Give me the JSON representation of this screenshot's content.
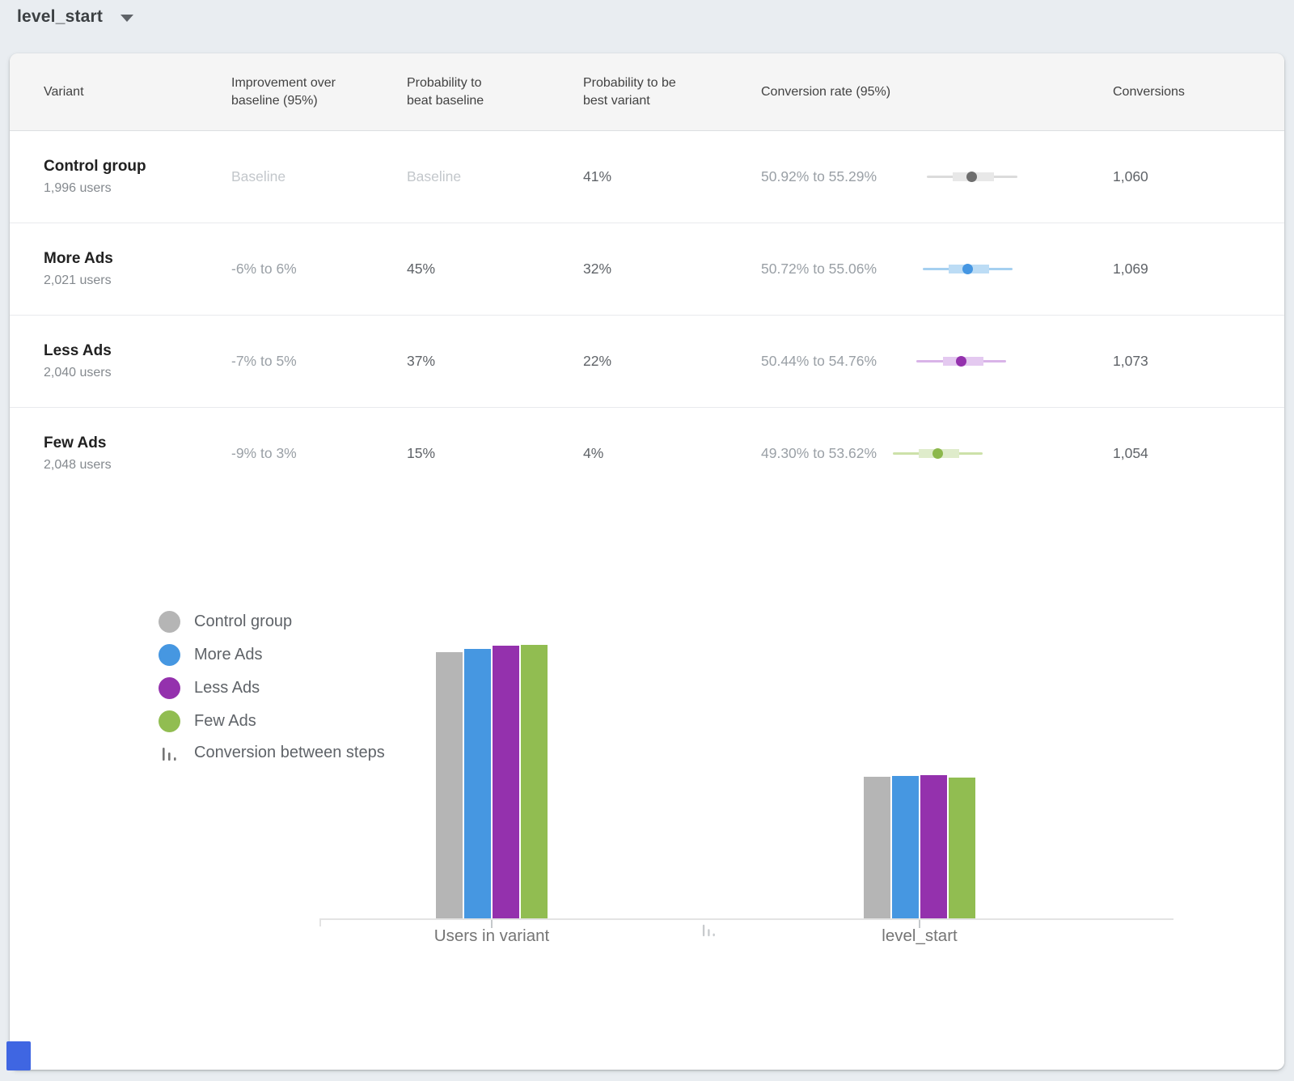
{
  "toolbar": {
    "metric_selector": {
      "label": "level_start"
    }
  },
  "table": {
    "columns": {
      "variant": "Variant",
      "improvement": "Improvement over baseline (95%)",
      "prob_beat": "Probability to beat baseline",
      "prob_best": "Probability to be best variant",
      "conv_rate": "Conversion rate (95%)",
      "conversions": "Conversions"
    },
    "rows": [
      {
        "variant": "Control group",
        "users": "1,996 users",
        "improvement": "Baseline",
        "prob_beat": "Baseline",
        "prob_best": "41%",
        "conv_rate": "50.92% to 55.29%",
        "ci_low": 50.92,
        "ci_high": 55.29,
        "conversions": "1,060",
        "colors": {
          "dot": "#6e6e6e",
          "line": "#dbdbdb",
          "box": "#e8e8e8"
        }
      },
      {
        "variant": "More Ads",
        "users": "2,021 users",
        "improvement": "-6% to 6%",
        "prob_beat": "45%",
        "prob_best": "32%",
        "conv_rate": "50.72% to 55.06%",
        "ci_low": 50.72,
        "ci_high": 55.06,
        "conversions": "1,069",
        "colors": {
          "dot": "#4596e2",
          "line": "#a5d0f0",
          "box": "#bcdcf5"
        }
      },
      {
        "variant": "Less Ads",
        "users": "2,040 users",
        "improvement": "-7% to 5%",
        "prob_beat": "37%",
        "prob_best": "22%",
        "conv_rate": "50.44% to 54.76%",
        "ci_low": 50.44,
        "ci_high": 54.76,
        "conversions": "1,073",
        "colors": {
          "dot": "#9431ad",
          "line": "#d9b4e8",
          "box": "#e4c9f0"
        }
      },
      {
        "variant": "Few Ads",
        "users": "2,048 users",
        "improvement": "-9% to 3%",
        "prob_beat": "15%",
        "prob_best": "4%",
        "conv_rate": "49.30% to 53.62%",
        "ci_low": 49.3,
        "ci_high": 53.62,
        "conversions": "1,054",
        "colors": {
          "dot": "#8cb84c",
          "line": "#cde1a9",
          "box": "#dfeccb"
        }
      }
    ]
  },
  "legend": {
    "items": [
      {
        "label": "Control group",
        "color": "#b5b5b5"
      },
      {
        "label": "More Ads",
        "color": "#4697e1"
      },
      {
        "label": "Less Ads",
        "color": "#9431ad"
      },
      {
        "label": "Few Ads",
        "color": "#91bd51"
      },
      {
        "label": "Conversion between steps"
      }
    ]
  },
  "chart_data": {
    "type": "bar",
    "categories": [
      "Users in variant",
      "level_start"
    ],
    "series": [
      {
        "name": "Control group",
        "color": "#b5b5b5",
        "values": [
          1996,
          1060
        ]
      },
      {
        "name": "More Ads",
        "color": "#4697e1",
        "values": [
          2021,
          1069
        ]
      },
      {
        "name": "Less Ads",
        "color": "#9431ad",
        "values": [
          2040,
          1073
        ]
      },
      {
        "name": "Few Ads",
        "color": "#91bd51",
        "values": [
          2048,
          1054
        ]
      }
    ],
    "title": "",
    "xlabel": "",
    "ylabel": "",
    "ylim": [
      0,
      2100
    ],
    "grid": false,
    "legend_position": "left",
    "interval_axis": {
      "min": 49.3,
      "max": 55.6
    }
  }
}
